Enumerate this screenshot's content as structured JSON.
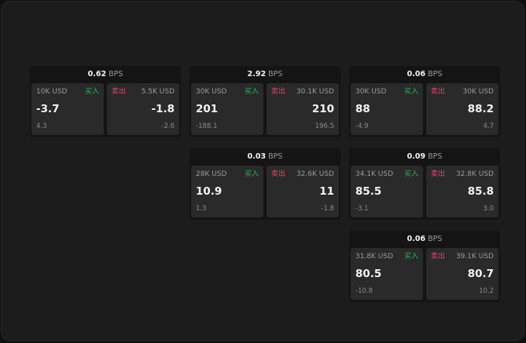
{
  "bps_unit": "BPS",
  "buy_label": "买入",
  "sell_label": "卖出",
  "colors": {
    "buy": "#2db35d",
    "sell": "#e0466a"
  },
  "cards": [
    {
      "spread": "0.62",
      "buy": {
        "size": "10K USD",
        "price": "-3.7",
        "change": "4.3"
      },
      "sell": {
        "size": "5.5K USD",
        "price": "-1.8",
        "change": "-2.6"
      }
    },
    {
      "spread": "2.92",
      "buy": {
        "size": "30K USD",
        "price": "201",
        "change": "-188.1"
      },
      "sell": {
        "size": "30.1K USD",
        "price": "210",
        "change": "196.5"
      }
    },
    {
      "spread": "0.06",
      "buy": {
        "size": "30K USD",
        "price": "88",
        "change": "-4.9"
      },
      "sell": {
        "size": "30K USD",
        "price": "88.2",
        "change": "4.7"
      }
    },
    {
      "spread": "0.03",
      "buy": {
        "size": "28K USD",
        "price": "10.9",
        "change": "1.3"
      },
      "sell": {
        "size": "32.6K USD",
        "price": "11",
        "change": "-1.8"
      }
    },
    {
      "spread": "0.09",
      "buy": {
        "size": "34.1K USD",
        "price": "85.5",
        "change": "-3.1"
      },
      "sell": {
        "size": "32.8K USD",
        "price": "85.8",
        "change": "3.0"
      }
    },
    {
      "spread": "0.06",
      "buy": {
        "size": "31.8K USD",
        "price": "80.5",
        "change": "-10.8"
      },
      "sell": {
        "size": "39.1K USD",
        "price": "80.7",
        "change": "10.2"
      }
    }
  ]
}
